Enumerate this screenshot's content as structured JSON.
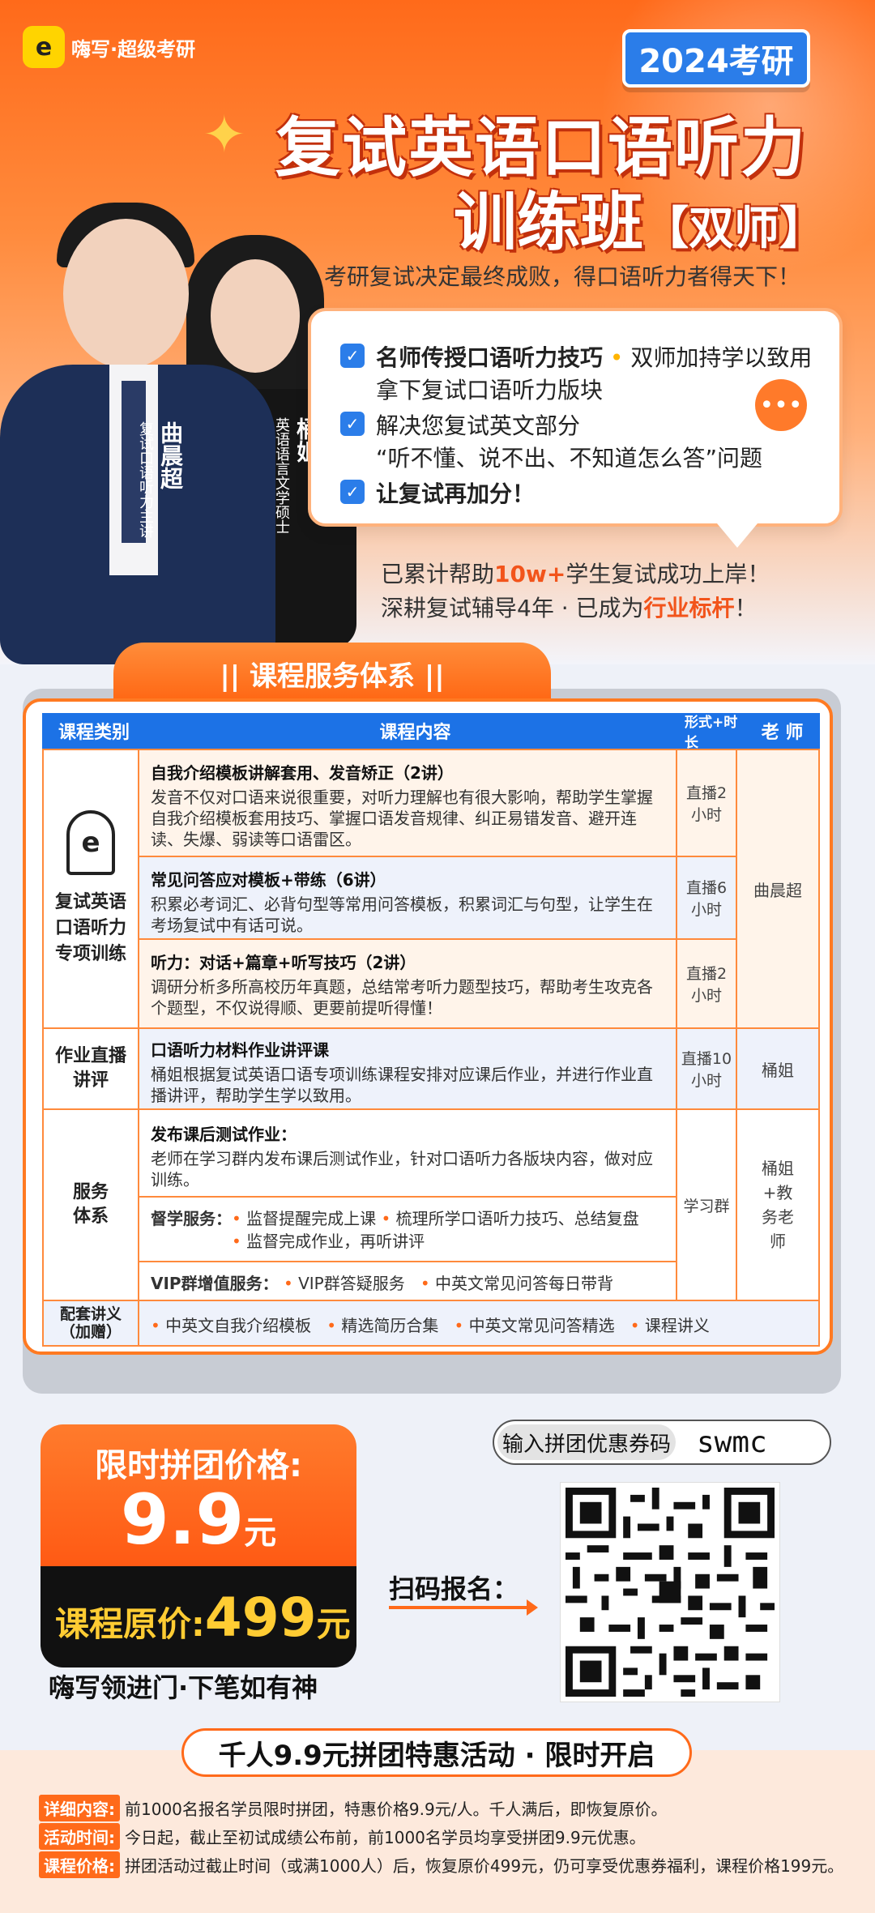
{
  "brand": {
    "logo_char": "e",
    "name": "嗨写·超级考研"
  },
  "year_badge": "2024考研",
  "title_line1": "复试英语口语听力",
  "title_line2": "训练班",
  "title_tag": "【双师】",
  "tagline": "考研复试决定最终成败，得口语听力者得天下！",
  "teachers": [
    {
      "name": "曲晨超",
      "title": "复试口语听力主讲"
    },
    {
      "name": "桶姐",
      "title": "英语语言文学硕士"
    }
  ],
  "bubble": {
    "line1_bold": "名师传授口语听力技巧",
    "line1_rest": "双师加持学以致用",
    "line2": "拿下复试口语听力版块",
    "line3": "解决您复试英文部分",
    "line4": "“听不懂、说不出、不知道怎么答”问题",
    "line5": "让复试再加分！"
  },
  "stats": {
    "l1_a": "已累计帮助",
    "l1_hl": "10w+",
    "l1_b": "学生复试成功上岸！",
    "l2_a": "深耕复试辅导4年 · 已成为",
    "l2_hl": "行业标杆",
    "l2_b": "！"
  },
  "section_title": "|| 课程服务体系 ||",
  "table": {
    "headers": [
      "课程类别",
      "课程内容",
      "形式+时长",
      "老 师"
    ],
    "cat1": "复试英语口语听力专项训练",
    "r1_title": "自我介绍模板讲解套用、发音矫正（2讲）",
    "r1_body": "发音不仅对口语来说很重要，对听力理解也有很大影响，帮助学生掌握自我介绍模板套用技巧、掌握口语发音规律、纠正易错发音、避开连读、失爆、弱读等口语雷区。",
    "r1_mode": "直播2小时",
    "r2_title": "常见问答应对模板+带练（6讲）",
    "r2_body": "积累必考词汇、必背句型等常用问答模板，积累词汇与句型，让学生在考场复试中有话可说。",
    "r2_mode": "直播6小时",
    "r3_title": "听力：对话+篇章+听写技巧（2讲）",
    "r3_body": "调研分析多所高校历年真题，总结常考听力题型技巧，帮助考生攻克各个题型，不仅说得顺、更要前提听得懂！",
    "r3_mode": "直播2小时",
    "teacher1": "曲晨超",
    "cat2": "作业直播讲评",
    "r4_title": "口语听力材料作业讲评课",
    "r4_body": "桶姐根据复试英语口语专项训练课程安排对应课后作业，并进行作业直播讲评，帮助学生学以致用。",
    "r4_mode": "直播10小时",
    "teacher2": "桶姐",
    "cat3": "服务体系",
    "r5_title": "发布课后测试作业：",
    "r5_body": "老师在学习群内发布课后测试作业，针对口语听力各版块内容，做对应训练。",
    "r6_label": "督学服务：",
    "r6_items": [
      "监督提醒完成上课",
      "梳理所学口语听力技巧、总结复盘",
      "监督完成作业，再听讲评"
    ],
    "r7_label": "VIP群增值服务：",
    "r7_items": [
      "VIP群答疑服务",
      "中英文常见问答每日带背"
    ],
    "r5_mode": "学习群",
    "teacher3": "桶姐+教务老师",
    "cat4": "配套讲义（加赠）",
    "r8_items": [
      "中英文自我介绍模板",
      "精选简历合集",
      "中英文常见问答精选",
      "课程讲义"
    ]
  },
  "price": {
    "label": "限时拼团价格:",
    "value": "9.9",
    "unit": "元",
    "orig_label": "课程原价:",
    "orig_value": "499",
    "orig_unit": "元"
  },
  "slogan": "嗨写领进门·下笔如有神",
  "coupon": {
    "label": "输入拼团优惠券码",
    "code": "swmc"
  },
  "scan_label": "扫码报名：",
  "promo_banner": "千人9.9元拼团特惠活动 · 限时开启",
  "footer": [
    {
      "tag": "详细内容:",
      "text": "前1000名报名学员限时拼团，特惠价格9.9元/人。千人满后，即恢复原价。"
    },
    {
      "tag": "活动时间:",
      "text": "今日起，截止至初试成绩公布前，前1000名学员均享受拼团9.9元优惠。"
    },
    {
      "tag": "课程价格:",
      "text": "拼团活动过截止时间（或满1000人）后，恢复原价499元，仍可享受优惠券福利，课程价格199元。"
    }
  ],
  "colors": {
    "accent": "#ff6a1a",
    "blue": "#1c72e6",
    "gold": "#ffcc33"
  }
}
